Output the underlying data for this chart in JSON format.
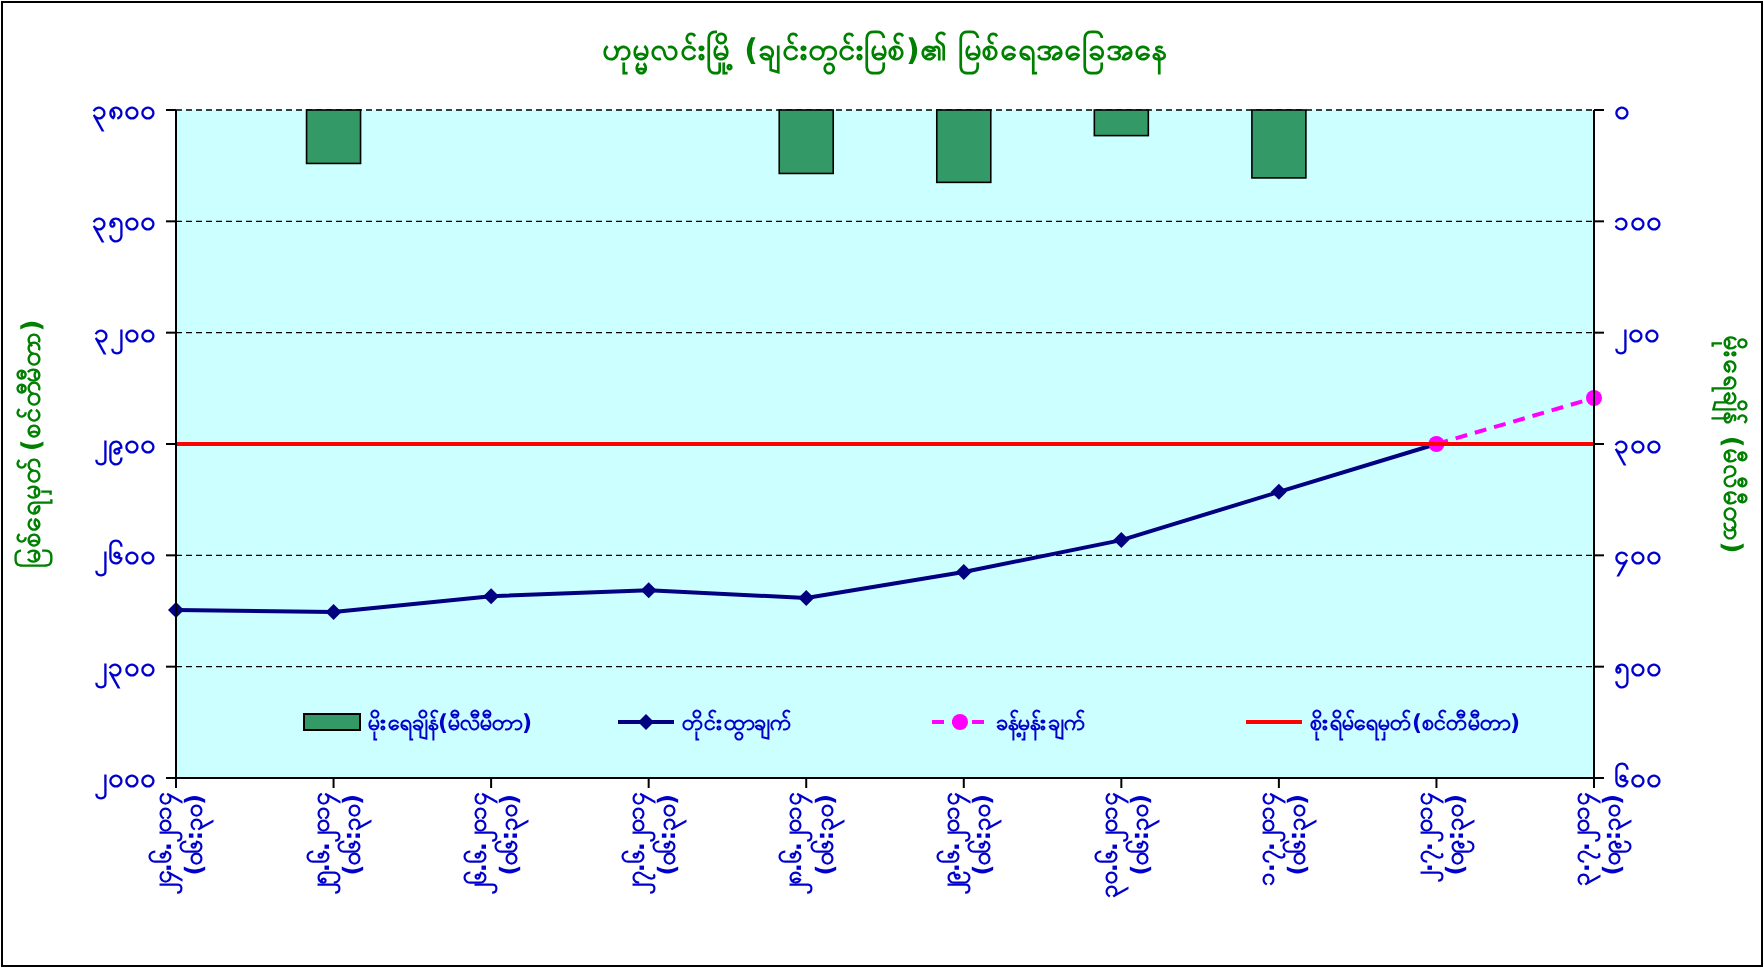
{
  "chart_data": {
    "type": "line",
    "title": "ဟုမ္မလင်းမြို့ (ချင်းတွင်းမြစ်)၏ မြစ်ရေအခြေအနေ",
    "ylabel": "မြစ်ရေမှတ် (စင်တီမီတာ)",
    "y2label": "မိုးရေချိန် (မီလီမီတာ)",
    "categories": [
      "၂၄.၆.၂၀၁၄\n(၀၆:၃၀)",
      "၂၅.၆.၂၀၁၄\n(၀၆:၃၀)",
      "၂၆.၆.၂၀၁၄\n(၀၆:၃၀)",
      "၂၇.၆.၂၀၁၄\n(၀၆:၃၀)",
      "၂၈.၆.၂၀၁၄\n(၀၆:၃၀)",
      "၂၉.၆.၂၀၁၄\n(၀၆:၃၀)",
      "၃၀.၆.၂၀၁၄\n(၀၆:၃၀)",
      "၁.၇.၂၀၁၄\n(၀၆:၃၀)",
      "၂.၇.၂၀၁၄\n(၀၉:၃၀)",
      "၃.၇.၂၀၁၄\n(၀၉:၃၀)"
    ],
    "series": [
      {
        "name": "မိုးရေချိန်(မီလီမီတာ)",
        "type": "bar",
        "axis": "y2",
        "color": "#339966",
        "values": [
          null,
          48,
          null,
          null,
          57,
          65,
          23,
          61,
          null,
          null
        ]
      },
      {
        "name": "တိုင်းထွာချက်",
        "color": "#000080",
        "marker": "diamond",
        "line_style": "solid",
        "values": [
          2453,
          2447,
          2490,
          2506,
          2485,
          2555,
          2641,
          2771,
          2900,
          null
        ]
      },
      {
        "name": "ခန့်မှန်းချက်",
        "color": "#ff00ff",
        "marker": "circle",
        "line_style": "dashed",
        "values": [
          null,
          null,
          null,
          null,
          null,
          null,
          null,
          null,
          2900,
          3024
        ]
      }
    ],
    "ylim": [
      2000,
      3800
    ],
    "yticks": [
      {
        "value": 2000,
        "label": "၂၀၀၀"
      },
      {
        "value": 2300,
        "label": "၂၃၀၀"
      },
      {
        "value": 2600,
        "label": "၂၆၀၀"
      },
      {
        "value": 2900,
        "label": "၂၉၀၀"
      },
      {
        "value": 3200,
        "label": "၃၂၀၀"
      },
      {
        "value": 3500,
        "label": "၃၅၀၀"
      },
      {
        "value": 3800,
        "label": "၃၈၀၀"
      }
    ],
    "y2lim": [
      600,
      0
    ],
    "y2ticks": [
      {
        "value": 0,
        "label": "၀"
      },
      {
        "value": 100,
        "label": "၁၀၀"
      },
      {
        "value": 200,
        "label": "၂၀၀"
      },
      {
        "value": 300,
        "label": "၃၀၀"
      },
      {
        "value": 400,
        "label": "၄၀၀"
      },
      {
        "value": 500,
        "label": "၅၀၀"
      },
      {
        "value": 600,
        "label": "၆၀၀"
      }
    ],
    "ref_lines": [
      {
        "axis": "y",
        "value": 2900,
        "label": "စိုးရိမ်ရေမှတ်(စင်တီမီတာ)",
        "color": "#ff0000",
        "line_style": "solid"
      }
    ],
    "grid": "y",
    "legend": "bottom"
  }
}
